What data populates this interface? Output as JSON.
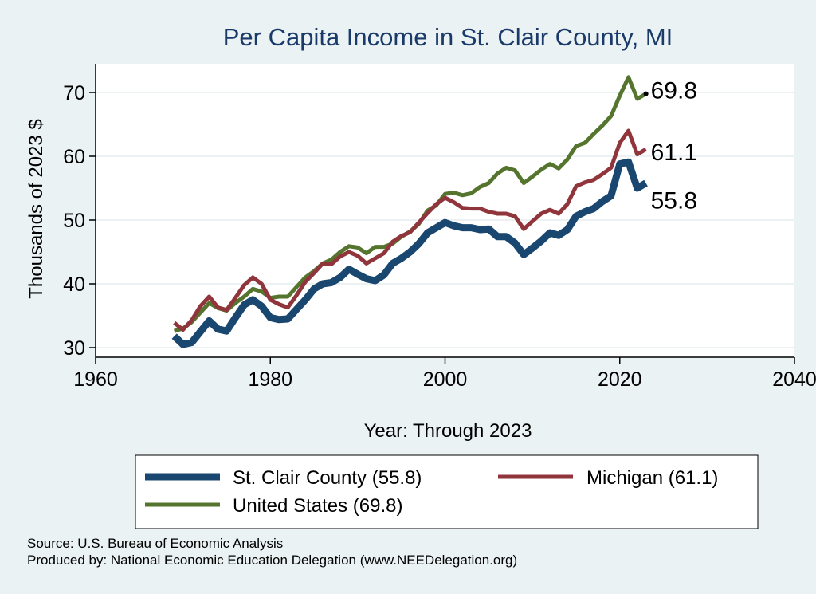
{
  "chart_data": {
    "type": "line",
    "title": "Per Capita Income in St. Clair County, MI",
    "xlabel": "Year: Through 2023",
    "ylabel": "Thousands of 2023 $",
    "xlim": [
      1960,
      2040
    ],
    "ylim": [
      28.5,
      74.5
    ],
    "xticks": [
      1960,
      1980,
      2000,
      2020,
      2040
    ],
    "yticks": [
      30,
      40,
      50,
      60,
      70
    ],
    "grid": true,
    "x": [
      1969,
      1970,
      1971,
      1972,
      1973,
      1974,
      1975,
      1976,
      1977,
      1978,
      1979,
      1980,
      1981,
      1982,
      1983,
      1984,
      1985,
      1986,
      1987,
      1988,
      1989,
      1990,
      1991,
      1992,
      1993,
      1994,
      1995,
      1996,
      1997,
      1998,
      1999,
      2000,
      2001,
      2002,
      2003,
      2004,
      2005,
      2006,
      2007,
      2008,
      2009,
      2010,
      2011,
      2012,
      2013,
      2014,
      2015,
      2016,
      2017,
      2018,
      2019,
      2020,
      2021,
      2022,
      2023
    ],
    "series": [
      {
        "name": "St. Clair County",
        "legend": "St. Clair County (55.8)",
        "color": "#1a476f",
        "end_label": "55.8",
        "values": [
          31.8,
          30.5,
          30.8,
          32.5,
          34.2,
          32.9,
          32.6,
          34.7,
          36.7,
          37.5,
          36.5,
          34.7,
          34.4,
          34.5,
          36.0,
          37.5,
          39.2,
          40.0,
          40.2,
          41.0,
          42.3,
          41.5,
          40.8,
          40.5,
          41.4,
          43.2,
          44.0,
          45.0,
          46.3,
          48.0,
          48.8,
          49.6,
          49.1,
          48.8,
          48.8,
          48.5,
          48.6,
          47.4,
          47.4,
          46.4,
          44.6,
          45.6,
          46.7,
          48.0,
          47.6,
          48.5,
          50.6,
          51.3,
          51.8,
          52.9,
          53.8,
          58.8,
          59.1,
          55.0,
          55.8
        ]
      },
      {
        "name": "Michigan",
        "legend": "Michigan (61.1)",
        "color": "#90353b",
        "end_label": "61.1",
        "values": [
          33.9,
          32.8,
          34.3,
          36.5,
          38.0,
          36.3,
          35.9,
          37.8,
          39.8,
          41.0,
          40.0,
          37.5,
          36.8,
          36.3,
          38.2,
          40.3,
          41.7,
          43.2,
          43.1,
          44.3,
          45.0,
          44.4,
          43.2,
          44.0,
          44.8,
          46.6,
          47.5,
          48.1,
          49.6,
          51.1,
          52.5,
          53.5,
          52.8,
          51.9,
          51.8,
          51.8,
          51.3,
          51.0,
          51.0,
          50.6,
          48.6,
          49.8,
          51.0,
          51.6,
          51.0,
          52.5,
          55.3,
          55.9,
          56.3,
          57.2,
          58.2,
          62.1,
          64.0,
          60.3,
          61.1
        ]
      },
      {
        "name": "United States",
        "legend": "United States (69.8)",
        "color": "#55752f",
        "end_label": "69.8",
        "values": [
          32.6,
          33.0,
          34.0,
          35.5,
          37.0,
          36.2,
          35.8,
          37.0,
          38.0,
          39.2,
          38.8,
          37.8,
          38.0,
          38.0,
          39.5,
          41.0,
          42.0,
          43.2,
          43.8,
          45.0,
          45.9,
          45.7,
          44.8,
          45.8,
          45.8,
          46.3,
          47.4,
          48.2,
          49.4,
          51.5,
          52.3,
          54.1,
          54.3,
          53.9,
          54.2,
          55.2,
          55.8,
          57.3,
          58.2,
          57.8,
          55.8,
          56.8,
          57.9,
          58.8,
          58.1,
          59.5,
          61.6,
          62.1,
          63.5,
          64.8,
          66.3,
          69.5,
          72.4,
          69.0,
          69.8
        ]
      }
    ],
    "legend_position": "bottom"
  },
  "footer": {
    "source": "Source: U.S. Bureau of Economic Analysis",
    "produced_by": "Produced by: National Economic Education Delegation (www.NEEDelegation.org)"
  }
}
